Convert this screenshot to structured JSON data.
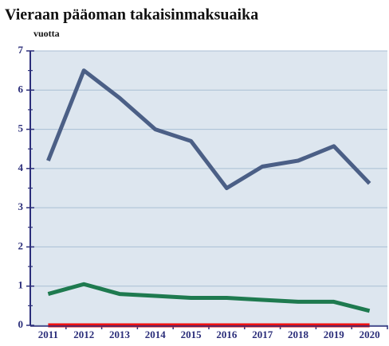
{
  "chart_data": {
    "type": "line",
    "title": "Vieraan pääoman takaisinmaksuaika",
    "y_label": "vuotta",
    "categories": [
      "2011",
      "2012",
      "2013",
      "2014",
      "2015",
      "2016",
      "2017",
      "2018",
      "2019",
      "2020"
    ],
    "series": [
      {
        "color": "#4b5f86",
        "values": [
          4.2,
          6.5,
          5.8,
          5.0,
          4.7,
          3.5,
          4.05,
          4.2,
          4.57,
          3.62
        ]
      },
      {
        "color": "#1e7a4f",
        "values": [
          0.8,
          1.05,
          0.8,
          0.75,
          0.7,
          0.7,
          0.65,
          0.6,
          0.6,
          0.37
        ]
      },
      {
        "color": "#ee1111",
        "values": [
          0,
          0,
          0,
          0,
          0,
          0,
          0,
          0,
          0,
          0
        ]
      }
    ],
    "ylim": [
      0,
      7
    ],
    "yticks": [
      0,
      1,
      2,
      3,
      4,
      5,
      6,
      7
    ],
    "grid": true,
    "background": "#dde6ef"
  }
}
